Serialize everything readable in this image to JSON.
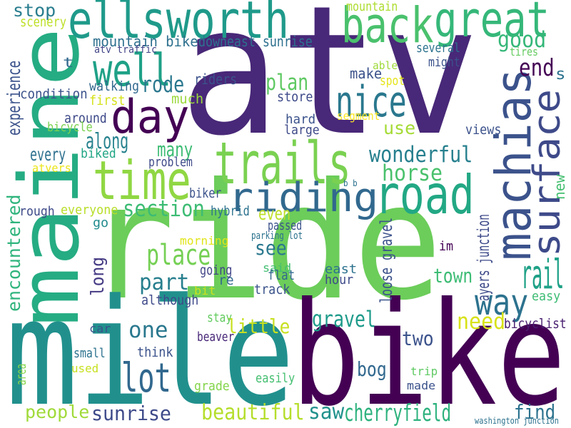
{
  "words": [
    {
      "text": "atv",
      "color": "#482878",
      "vertical": false
    },
    {
      "text": "ride",
      "color": "#6ccd5a",
      "vertical": false
    },
    {
      "text": "bike",
      "color": "#440154",
      "vertical": false
    },
    {
      "text": "mile",
      "color": "#21908d",
      "vertical": false
    },
    {
      "text": "maine",
      "color": "#25ac82",
      "vertical": true
    },
    {
      "text": "ellsworth",
      "color": "#1f9a8a",
      "vertical": false
    },
    {
      "text": "trails",
      "color": "#7ad151",
      "vertical": false
    },
    {
      "text": "machias",
      "color": "#3b528b",
      "vertical": true
    },
    {
      "text": "surface",
      "color": "#3e4a89",
      "vertical": true
    },
    {
      "text": "road",
      "color": "#22a884",
      "vertical": false
    },
    {
      "text": "riding",
      "color": "#31688e",
      "vertical": false
    },
    {
      "text": "great",
      "color": "#35b779",
      "vertical": false
    },
    {
      "text": "time",
      "color": "#90d743",
      "vertical": false
    },
    {
      "text": "back",
      "color": "#4ac16d",
      "vertical": false
    },
    {
      "text": "well",
      "color": "#1fa187",
      "vertical": false
    },
    {
      "text": "day",
      "color": "#440154",
      "vertical": false
    },
    {
      "text": "nice",
      "color": "#2a788e",
      "vertical": false
    },
    {
      "text": "lot",
      "color": "#31688e",
      "vertical": false
    },
    {
      "text": "rail",
      "color": "#1fa187",
      "vertical": false
    },
    {
      "text": "way",
      "color": "#2c728e",
      "vertical": false
    },
    {
      "text": "place",
      "color": "#75d054",
      "vertical": false
    },
    {
      "text": "stop",
      "color": "#287d8e",
      "vertical": false
    },
    {
      "text": "good",
      "color": "#35b779",
      "vertical": false
    },
    {
      "text": "end",
      "color": "#440154",
      "vertical": false
    },
    {
      "text": "plan",
      "color": "#5ec962",
      "vertical": false
    },
    {
      "text": "rode",
      "color": "#2a788e",
      "vertical": false
    },
    {
      "text": "along",
      "color": "#26828e",
      "vertical": false
    },
    {
      "text": "many",
      "color": "#3dbc74",
      "vertical": false
    },
    {
      "text": "every",
      "color": "#2d708e",
      "vertical": false
    },
    {
      "text": "wonderful",
      "color": "#27808e",
      "vertical": false
    },
    {
      "text": "horse",
      "color": "#4ac16d",
      "vertical": false
    },
    {
      "text": "section",
      "color": "#3dbc74",
      "vertical": false
    },
    {
      "text": "experience",
      "color": "#3b528b",
      "vertical": true
    },
    {
      "text": "encountered",
      "color": "#2fb47c",
      "vertical": true
    },
    {
      "text": "one",
      "color": "#2a788e",
      "vertical": false
    },
    {
      "text": "part",
      "color": "#277f8e",
      "vertical": false
    },
    {
      "text": "see",
      "color": "#2a788e",
      "vertical": false
    },
    {
      "text": "even",
      "color": "#bddf26",
      "vertical": false
    },
    {
      "text": "town",
      "color": "#3dbc74",
      "vertical": false
    },
    {
      "text": "gravel",
      "color": "#1e9b8a",
      "vertical": false
    },
    {
      "text": "little",
      "color": "#c8e020",
      "vertical": false
    },
    {
      "text": "need",
      "color": "#d8e219",
      "vertical": false
    },
    {
      "text": "two",
      "color": "#3b528b",
      "vertical": false
    },
    {
      "text": "bog",
      "color": "#31688e",
      "vertical": false
    },
    {
      "text": "people",
      "color": "#a0da39",
      "vertical": false
    },
    {
      "text": "sunrise",
      "color": "#3e4a89",
      "vertical": false
    },
    {
      "text": "beautiful",
      "color": "#b5de2b",
      "vertical": false
    },
    {
      "text": "saw",
      "color": "#21918c",
      "vertical": false
    },
    {
      "text": "cherryfield",
      "color": "#2db27d",
      "vertical": false
    },
    {
      "text": "find",
      "color": "#2c728e",
      "vertical": false
    },
    {
      "text": "long",
      "color": "#443a83",
      "vertical": true
    },
    {
      "text": "use",
      "color": "#a5db36",
      "vertical": false
    },
    {
      "text": "scenery",
      "color": "#bddf26",
      "vertical": false
    },
    {
      "text": "mountain",
      "color": "#addc30",
      "vertical": false
    },
    {
      "text": "mountain bike",
      "color": "#2d708e",
      "vertical": false
    },
    {
      "text": "downeast sunrise",
      "color": "#2d708e",
      "vertical": false
    },
    {
      "text": "atv traffic",
      "color": "#414487",
      "vertical": false
    },
    {
      "text": "several",
      "color": "#2c728e",
      "vertical": false
    },
    {
      "text": "tires",
      "color": "#63cb5f",
      "vertical": false
    },
    {
      "text": "might",
      "color": "#3b528b",
      "vertical": false
    },
    {
      "text": "able",
      "color": "#9fda3a",
      "vertical": false
    },
    {
      "text": "spot",
      "color": "#e5e419",
      "vertical": false
    },
    {
      "text": "make",
      "color": "#3b528b",
      "vertical": false
    },
    {
      "text": "s",
      "color": "#2c728e",
      "vertical": false
    },
    {
      "text": "t",
      "color": "#31688e",
      "vertical": false
    },
    {
      "text": "riders",
      "color": "#3b528b",
      "vertical": false
    },
    {
      "text": "walking",
      "color": "#31688e",
      "vertical": false
    },
    {
      "text": "condition",
      "color": "#3b528b",
      "vertical": false
    },
    {
      "text": "first",
      "color": "#d5e21a",
      "vertical": false
    },
    {
      "text": "much",
      "color": "#9bd93c",
      "vertical": false
    },
    {
      "text": "store",
      "color": "#3e4a89",
      "vertical": false
    },
    {
      "text": "around",
      "color": "#3e4a89",
      "vertical": false
    },
    {
      "text": "bicycle",
      "color": "#7ad151",
      "vertical": false
    },
    {
      "text": "hard",
      "color": "#3b528b",
      "vertical": false
    },
    {
      "text": "large",
      "color": "#3e4a89",
      "vertical": false
    },
    {
      "text": "segment",
      "color": "#fde725",
      "vertical": false
    },
    {
      "text": "views",
      "color": "#3b528b",
      "vertical": false
    },
    {
      "text": "biked",
      "color": "#21a685",
      "vertical": false
    },
    {
      "text": "problem",
      "color": "#3e4a89",
      "vertical": false
    },
    {
      "text": "atvers",
      "color": "#eae51a",
      "vertical": false
    },
    {
      "text": "new",
      "color": "#44bf70",
      "vertical": true
    },
    {
      "text": "b b",
      "color": "#2c728e",
      "vertical": false
    },
    {
      "text": "biker",
      "color": "#3b528b",
      "vertical": false
    },
    {
      "text": "rough",
      "color": "#3e4a89",
      "vertical": false
    },
    {
      "text": "everyone",
      "color": "#b8de29",
      "vertical": false
    },
    {
      "text": "hybrid",
      "color": "#2c728e",
      "vertical": false
    },
    {
      "text": "go",
      "color": "#228c8d",
      "vertical": false
    },
    {
      "text": "parking lot",
      "color": "#2c728e",
      "vertical": false
    },
    {
      "text": "passed",
      "color": "#3b528b",
      "vertical": false
    },
    {
      "text": "morning",
      "color": "#e2e418",
      "vertical": false
    },
    {
      "text": "im",
      "color": "#440154",
      "vertical": false
    },
    {
      "text": "ayers junction",
      "color": "#3e4a89",
      "vertical": true
    },
    {
      "text": "loose gravel",
      "color": "#3b528b",
      "vertical": true
    },
    {
      "text": "going",
      "color": "#414487",
      "vertical": false
    },
    {
      "text": "said",
      "color": "#42be71",
      "vertical": false
    },
    {
      "text": "flat",
      "color": "#31688e",
      "vertical": false
    },
    {
      "text": "re",
      "color": "#31688e",
      "vertical": false
    },
    {
      "text": "east",
      "color": "#2c728e",
      "vertical": false
    },
    {
      "text": "hour",
      "color": "#3e4a89",
      "vertical": false
    },
    {
      "text": "bit",
      "color": "#cae11f",
      "vertical": false
    },
    {
      "text": "track",
      "color": "#3b528b",
      "vertical": false
    },
    {
      "text": "although",
      "color": "#3e4a89",
      "vertical": false
    },
    {
      "text": "easy",
      "color": "#3dbc74",
      "vertical": false
    },
    {
      "text": "stay",
      "color": "#63cb5f",
      "vertical": false
    },
    {
      "text": "car",
      "color": "#3b528b",
      "vertical": false
    },
    {
      "text": "beaver",
      "color": "#482878",
      "vertical": false
    },
    {
      "text": "bicyclist",
      "color": "#481f70",
      "vertical": false
    },
    {
      "text": "small",
      "color": "#2c728e",
      "vertical": false
    },
    {
      "text": "think",
      "color": "#3b528b",
      "vertical": false
    },
    {
      "text": "area",
      "color": "#84d44b",
      "vertical": true
    },
    {
      "text": "used",
      "color": "#c8e020",
      "vertical": false
    },
    {
      "text": "easily",
      "color": "#44bf70",
      "vertical": false
    },
    {
      "text": "grade",
      "color": "#84d44b",
      "vertical": false
    },
    {
      "text": "trip",
      "color": "#5ec962",
      "vertical": false
    },
    {
      "text": "made",
      "color": "#3b528b",
      "vertical": false
    },
    {
      "text": "washington junction",
      "color": "#2c728e",
      "vertical": false
    }
  ]
}
